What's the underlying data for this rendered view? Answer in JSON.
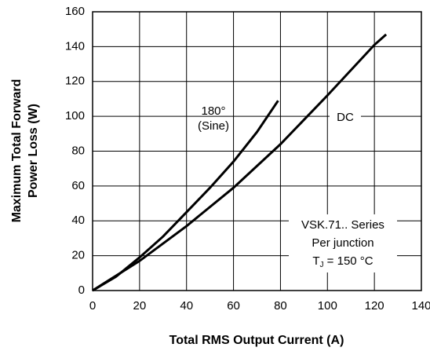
{
  "chart_data": {
    "type": "line",
    "xlabel": "Total RMS Output Current (A)",
    "ylabel_lines": [
      "Maximum Total Forward",
      "Power Loss (W)"
    ],
    "xlim": [
      0,
      140
    ],
    "xticks": [
      0,
      20,
      40,
      60,
      80,
      100,
      120,
      140
    ],
    "ylim": [
      0,
      160
    ],
    "yticks": [
      0,
      20,
      40,
      60,
      80,
      100,
      120,
      140,
      160
    ],
    "grid": true,
    "series": [
      {
        "label_lines": [
          "180°",
          "(Sine)"
        ],
        "color": "#000000",
        "x": [
          0,
          10,
          20,
          30,
          40,
          50,
          60,
          70,
          79
        ],
        "values": [
          0,
          8,
          19,
          31,
          45,
          59,
          74,
          91,
          109
        ]
      },
      {
        "name": "DC",
        "color": "#000000",
        "x": [
          0,
          20,
          40,
          60,
          80,
          100,
          120,
          125
        ],
        "values": [
          0,
          17,
          37,
          59,
          84,
          112,
          141,
          147
        ]
      }
    ],
    "note": {
      "line1": "VSK.71.. Series",
      "line2": "Per junction",
      "t": "T",
      "sub": "J",
      "rest": " = 150 °C"
    }
  }
}
